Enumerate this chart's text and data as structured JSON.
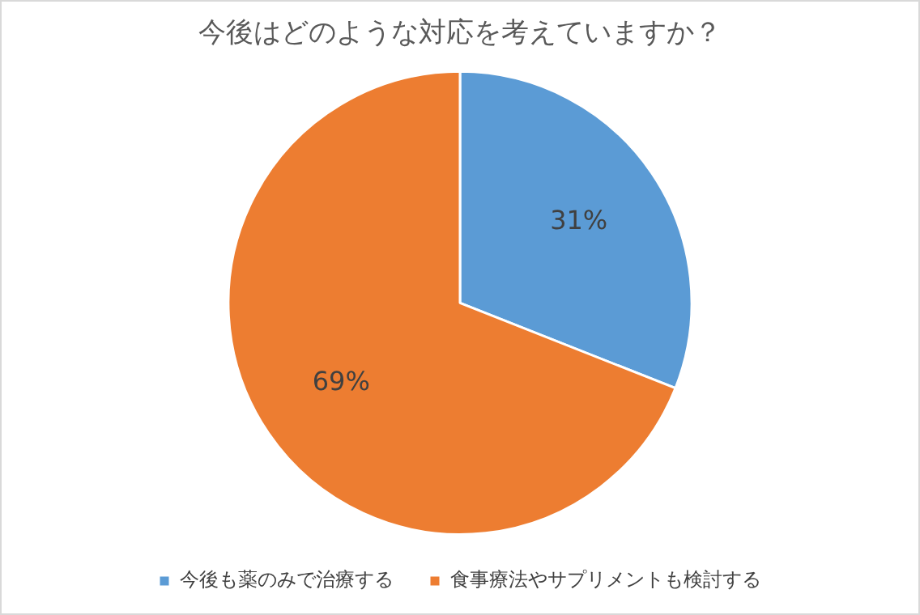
{
  "chart_data": {
    "type": "pie",
    "title": "今後はどのような対応を考えていますか？",
    "categories": [
      "今後も薬のみで治療する",
      "食事療法やサプリメントも検討する"
    ],
    "values": [
      31,
      69
    ],
    "colors": [
      "#5b9bd5",
      "#ed7d31"
    ],
    "value_labels": [
      "31%",
      "69%"
    ],
    "legend": "bottom"
  }
}
